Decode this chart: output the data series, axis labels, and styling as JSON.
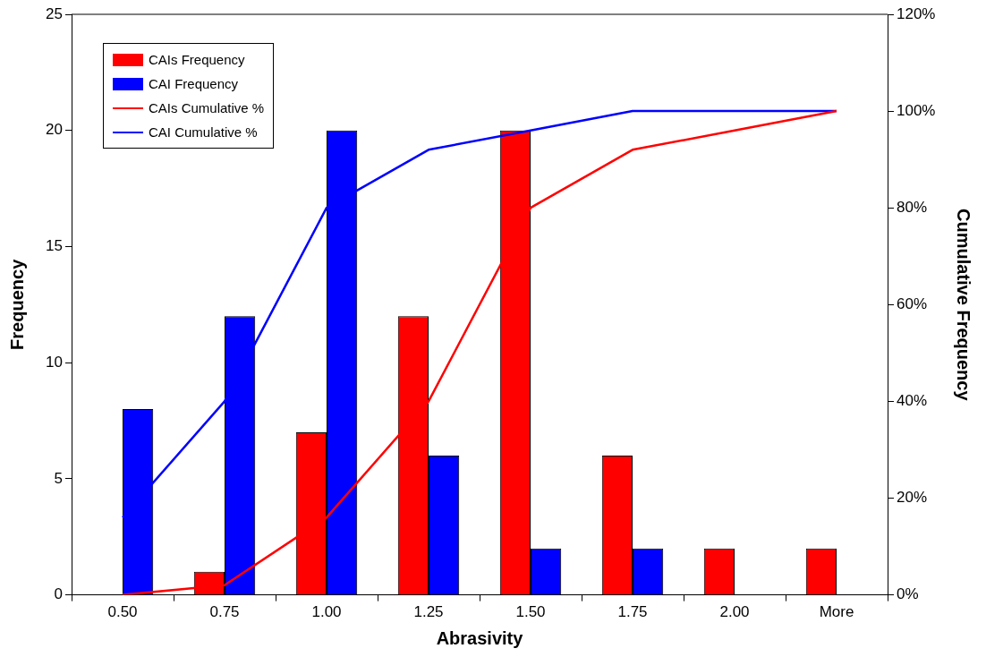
{
  "chart_data": {
    "type": "bar",
    "xlabel": "Abrasivity",
    "ylabel": "Frequency",
    "y2label": "Cumulative Frequency",
    "categories": [
      "0.50",
      "0.75",
      "1.00",
      "1.25",
      "1.50",
      "1.75",
      "2.00",
      "More"
    ],
    "series": [
      {
        "name": "CAIs Frequency",
        "color": "#ff0000",
        "values": [
          0,
          1,
          7,
          12,
          20,
          6,
          2,
          2
        ]
      },
      {
        "name": "CAI Frequency",
        "color": "#0000ff",
        "values": [
          8,
          12,
          20,
          6,
          2,
          2,
          0,
          0
        ]
      },
      {
        "name": "CAIs Cumulative %",
        "type": "line",
        "axis": "y2",
        "color": "#ff0000",
        "values": [
          0,
          2,
          16,
          40,
          80,
          92,
          96,
          100
        ]
      },
      {
        "name": "CAI Cumulative %",
        "type": "line",
        "axis": "y2",
        "color": "#0000ff",
        "values": [
          16,
          40,
          80,
          92,
          96,
          100,
          100,
          100
        ]
      }
    ],
    "ylim": [
      0,
      25
    ],
    "yticks": [
      0,
      5,
      10,
      15,
      20,
      25
    ],
    "y2lim": [
      0,
      120
    ],
    "y2ticks": [
      {
        "value": 0,
        "label": "0%"
      },
      {
        "value": 20,
        "label": "20%"
      },
      {
        "value": 40,
        "label": "40%"
      },
      {
        "value": 60,
        "label": "60%"
      },
      {
        "value": 80,
        "label": "80%"
      },
      {
        "value": 100,
        "label": "100%"
      },
      {
        "value": 120,
        "label": "120%"
      }
    ],
    "grid": false,
    "legend": "top left",
    "marker": "none",
    "line_style": "solid"
  }
}
